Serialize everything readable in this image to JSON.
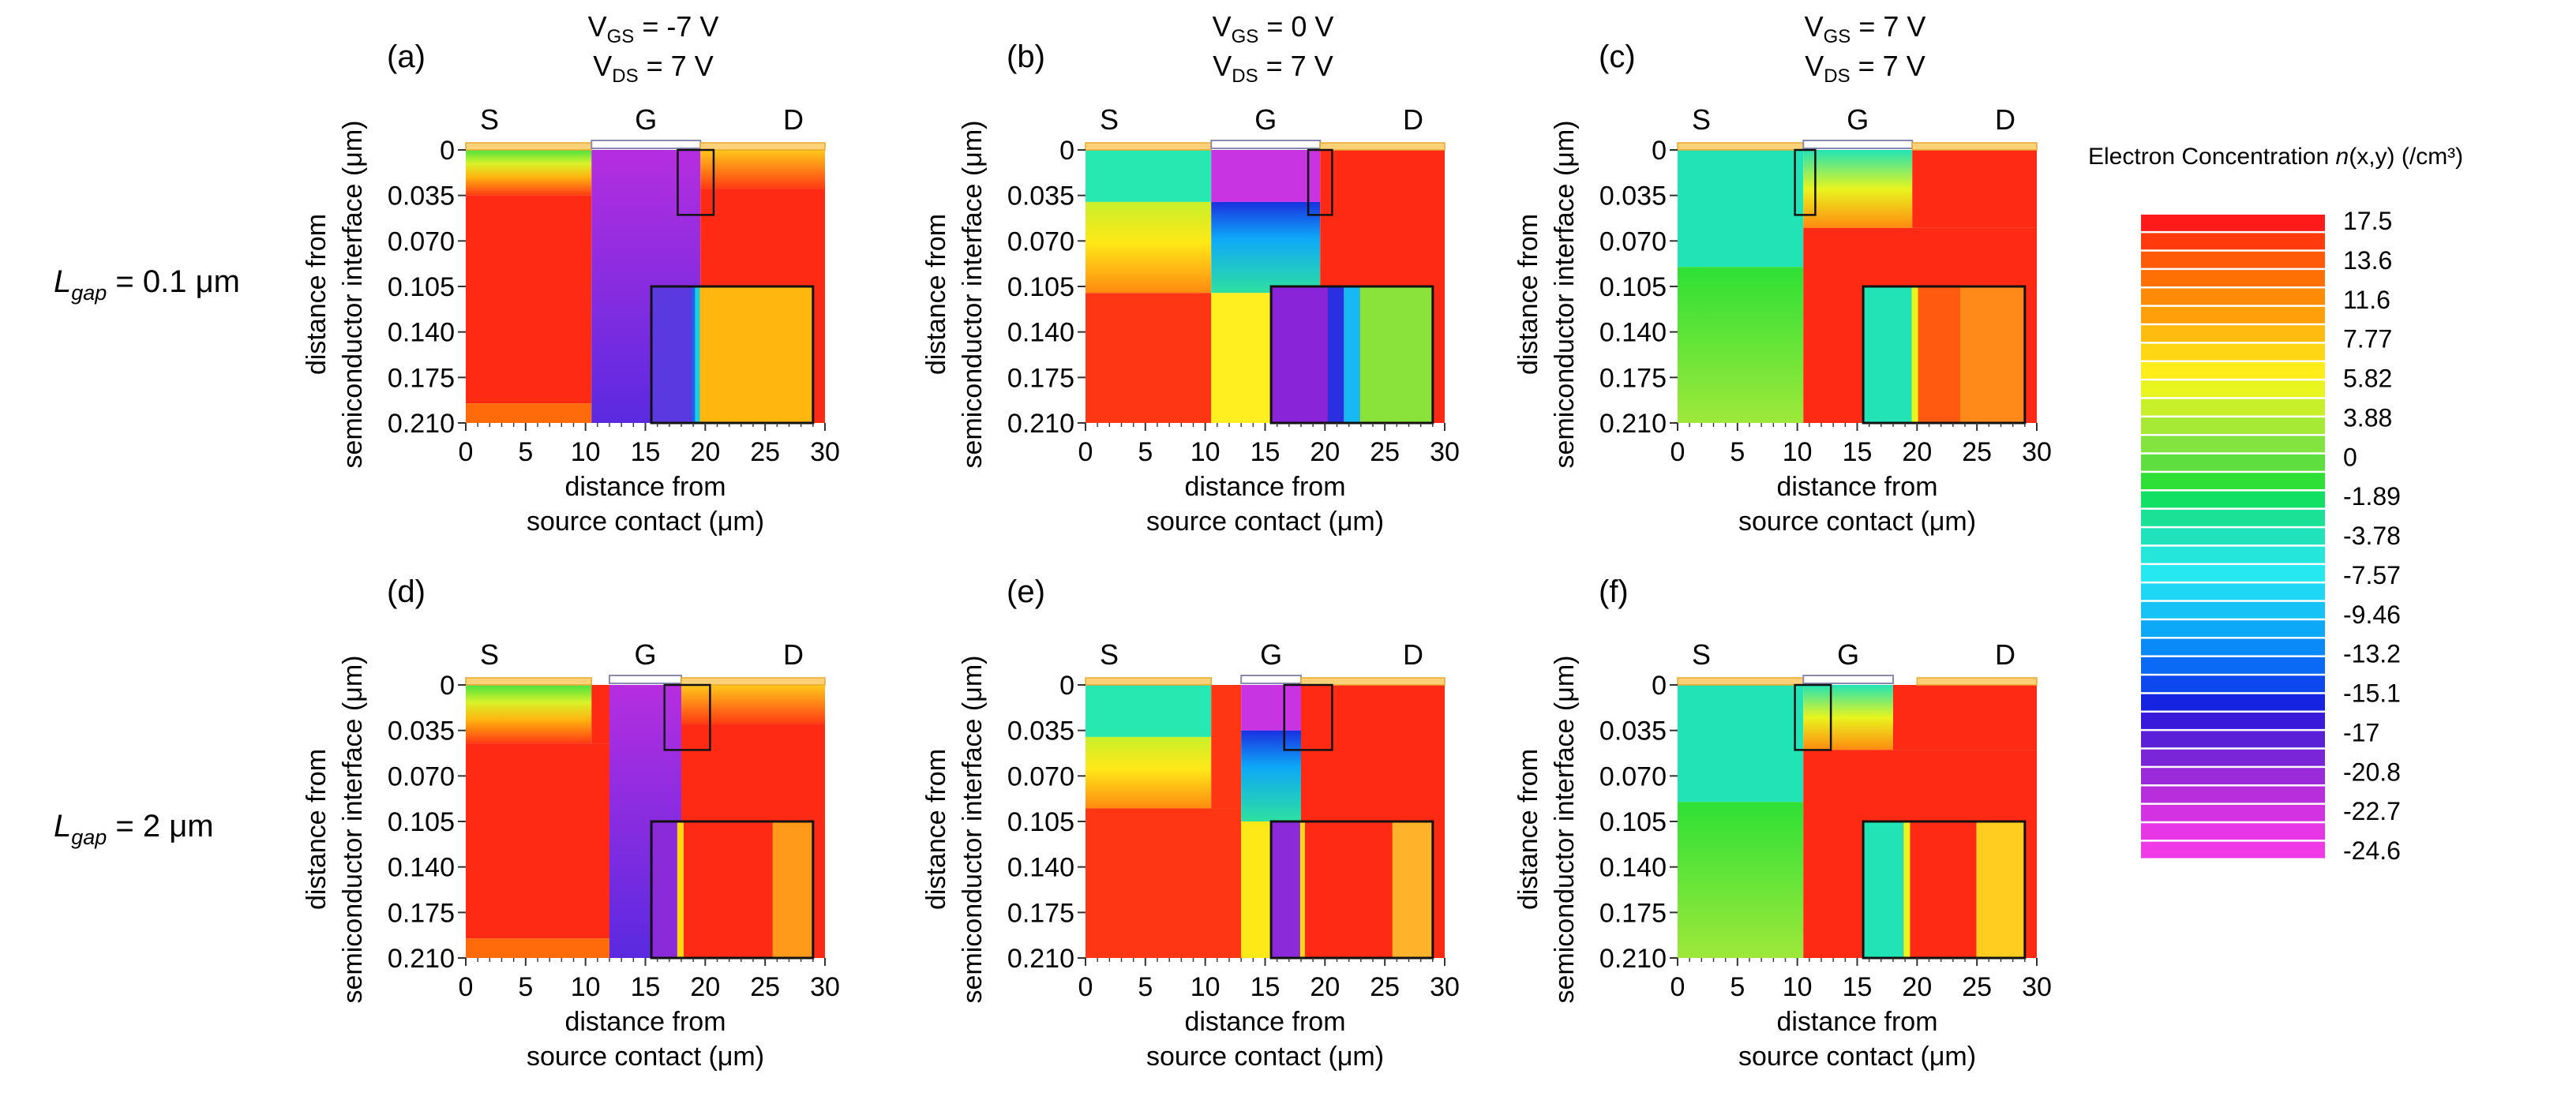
{
  "figure": {
    "rows": [
      {
        "label_prefix": "L",
        "label_sub": "gap",
        "label_suffix": " = 0.1 μm"
      },
      {
        "label_prefix": "L",
        "label_sub": "gap",
        "label_suffix": " = 2 μm"
      }
    ],
    "columns": [
      {
        "vgs_label": "V",
        "vgs_sub": "GS",
        "vgs_value": " = -7 V",
        "vds_label": "V",
        "vds_sub": "DS",
        "vds_value": " = 7 V"
      },
      {
        "vgs_label": "V",
        "vgs_sub": "GS",
        "vgs_value": " = 0 V",
        "vds_label": "V",
        "vds_sub": "DS",
        "vds_value": " = 7 V"
      },
      {
        "vgs_label": "V",
        "vgs_sub": "GS",
        "vgs_value": " = 7 V",
        "vds_label": "V",
        "vds_sub": "DS",
        "vds_value": " = 7 V"
      }
    ],
    "xlabel_line1": "distance from",
    "xlabel_line2": "source contact (μm)",
    "ylabel_line1": "distance from",
    "ylabel_line2": "semiconductor interface (μm)",
    "contact_labels": {
      "source": "S",
      "gate": "G",
      "drain": "D"
    },
    "colorbar": {
      "title_prefix": "Electron Concentration ",
      "title_var": "n",
      "title_args": "(x,y)",
      "title_unit": " (/cm³)",
      "tick_labels": [
        "17.5",
        "13.6",
        "11.6",
        "7.77",
        "5.82",
        "3.88",
        "0",
        "-1.89",
        "-3.78",
        "-7.57",
        "-9.46",
        "-13.2",
        "-15.1",
        "-17",
        "-20.8",
        "-22.7",
        "-24.6"
      ],
      "colors": [
        "#ff1a1a",
        "#ff3b0d",
        "#ff5a08",
        "#ff7004",
        "#ff8a05",
        "#ffa00a",
        "#ffbb10",
        "#ffd614",
        "#ffec19",
        "#e8f51e",
        "#c8f02a",
        "#a6ea35",
        "#84e43f",
        "#5fdf3f",
        "#2ee036",
        "#12e064",
        "#1ae196",
        "#20e3bb",
        "#25e6da",
        "#26e8f0",
        "#1fd7f5",
        "#17c2f7",
        "#0ea8f8",
        "#0a8af8",
        "#0a6af5",
        "#0d48ee",
        "#1624e2",
        "#3a1ada",
        "#5a20d8",
        "#7a26d8",
        "#9a2ada",
        "#b82edd",
        "#d232e2",
        "#e636e6",
        "#f03ae8"
      ]
    },
    "axis_defaults": {
      "xlim": [
        0,
        30
      ],
      "ylim": [
        0,
        0.21
      ],
      "xticks": [
        0,
        5,
        10,
        15,
        20,
        25,
        30
      ],
      "yticks": [
        0,
        0.035,
        0.07,
        0.105,
        0.14,
        0.175,
        0.21
      ],
      "ytick_labels": [
        "0",
        "0.035",
        "0.070",
        "0.105",
        "0.140",
        "0.175",
        "0.210"
      ],
      "xtick_labels": [
        "0",
        "5",
        "10",
        "15",
        "20",
        "25",
        "30"
      ]
    }
  },
  "chart_data": [
    {
      "type": "heatmap",
      "panel": "(a)",
      "row": 0,
      "col": 0,
      "gate_range": [
        10.5,
        19.6
      ],
      "source_end": 10.5,
      "drain_start": 19.6,
      "regions": [
        {
          "x": [
            0,
            10.5
          ],
          "y": [
            0,
            0.035
          ],
          "color": "grad_yg_red"
        },
        {
          "x": [
            0,
            10.5
          ],
          "y": [
            0.035,
            0.195
          ],
          "color": "#ff2a14"
        },
        {
          "x": [
            0,
            10.5
          ],
          "y": [
            0.195,
            0.21
          ],
          "color": "#ff6a0a"
        },
        {
          "x": [
            10.5,
            19.6
          ],
          "y": [
            0,
            0.21
          ],
          "color": "grad_purple_blue"
        },
        {
          "x": [
            19.6,
            30
          ],
          "y": [
            0,
            0.03
          ],
          "color": "grad_orange_red"
        },
        {
          "x": [
            19.6,
            30
          ],
          "y": [
            0.03,
            0.21
          ],
          "color": "#ff2a14"
        }
      ],
      "zoom_box": {
        "x": [
          17.7,
          20.7
        ],
        "y": [
          0,
          0.05
        ]
      },
      "inset": {
        "x": [
          15.5,
          29
        ],
        "y": [
          0.105,
          0.21
        ],
        "bands": [
          {
            "from": 0,
            "to": 0.25,
            "color": "#5a3ae0"
          },
          {
            "from": 0.25,
            "to": 0.27,
            "color": "#2060f0"
          },
          {
            "from": 0.27,
            "to": 0.3,
            "color": "#1ad0e0"
          },
          {
            "from": 0.3,
            "to": 1,
            "color": "#ffb70f"
          }
        ]
      }
    },
    {
      "type": "heatmap",
      "panel": "(b)",
      "row": 0,
      "col": 1,
      "gate_range": [
        10.5,
        19.6
      ],
      "source_end": 10.5,
      "drain_start": 19.6,
      "regions": [
        {
          "x": [
            0,
            10.5
          ],
          "y": [
            0,
            0.04
          ],
          "color": "#27e8b0"
        },
        {
          "x": [
            0,
            10.5
          ],
          "y": [
            0.04,
            0.11
          ],
          "color": "grad_yg_orange"
        },
        {
          "x": [
            0,
            10.5
          ],
          "y": [
            0.11,
            0.21
          ],
          "color": "#ff3614"
        },
        {
          "x": [
            10.5,
            19.6
          ],
          "y": [
            0,
            0.04
          ],
          "color": "#c834e2"
        },
        {
          "x": [
            10.5,
            19.6
          ],
          "y": [
            0.04,
            0.11
          ],
          "color": "grad_blue_cyan"
        },
        {
          "x": [
            10.5,
            19.6
          ],
          "y": [
            0.11,
            0.21
          ],
          "color": "#ffee20"
        },
        {
          "x": [
            19.6,
            30
          ],
          "y": [
            0,
            0.21
          ],
          "color": "#ff2a14"
        }
      ],
      "zoom_box": {
        "x": [
          18.6,
          20.6
        ],
        "y": [
          0,
          0.05
        ]
      },
      "inset": {
        "x": [
          15.5,
          29
        ],
        "y": [
          0.105,
          0.21
        ],
        "bands": [
          {
            "from": 0,
            "to": 0.35,
            "color": "#8a24d8"
          },
          {
            "from": 0.35,
            "to": 0.45,
            "color": "#2a30e0"
          },
          {
            "from": 0.45,
            "to": 0.55,
            "color": "#16b8f5"
          },
          {
            "from": 0.55,
            "to": 1,
            "color": "#8ae33a"
          }
        ]
      }
    },
    {
      "type": "heatmap",
      "panel": "(c)",
      "row": 0,
      "col": 2,
      "gate_range": [
        10.5,
        19.6
      ],
      "source_end": 10.5,
      "drain_start": 19.6,
      "regions": [
        {
          "x": [
            0,
            10.5
          ],
          "y": [
            0,
            0.09
          ],
          "color": "#22e3b5"
        },
        {
          "x": [
            0,
            10.5
          ],
          "y": [
            0.09,
            0.21
          ],
          "color": "grad_green_ygreen"
        },
        {
          "x": [
            10.5,
            19.6
          ],
          "y": [
            0,
            0.06
          ],
          "color": "grad_cyan_orange"
        },
        {
          "x": [
            10.5,
            30
          ],
          "y": [
            0.06,
            0.21
          ],
          "color": "#ff2a14"
        },
        {
          "x": [
            19.6,
            30
          ],
          "y": [
            0,
            0.06
          ],
          "color": "#ff2a14"
        }
      ],
      "zoom_box": {
        "x": [
          9.8,
          11.5
        ],
        "y": [
          0,
          0.05
        ]
      },
      "inset": {
        "x": [
          15.5,
          29
        ],
        "y": [
          0.105,
          0.21
        ],
        "bands": [
          {
            "from": 0,
            "to": 0.3,
            "color": "#22e3b5"
          },
          {
            "from": 0.3,
            "to": 0.34,
            "color": "#e8f51e"
          },
          {
            "from": 0.34,
            "to": 0.6,
            "color": "#ff5a10"
          },
          {
            "from": 0.6,
            "to": 1,
            "color": "#ff8a1a"
          }
        ]
      }
    },
    {
      "type": "heatmap",
      "panel": "(d)",
      "row": 1,
      "col": 0,
      "gate_range": [
        12,
        18
      ],
      "source_end": 10.5,
      "drain_start": 18,
      "regions": [
        {
          "x": [
            0,
            10.5
          ],
          "y": [
            0,
            0.045
          ],
          "color": "grad_yg_red"
        },
        {
          "x": [
            0,
            12
          ],
          "y": [
            0.045,
            0.195
          ],
          "color": "#ff2a14"
        },
        {
          "x": [
            10.5,
            12
          ],
          "y": [
            0,
            0.045
          ],
          "color": "#ff2a14"
        },
        {
          "x": [
            0,
            12
          ],
          "y": [
            0.195,
            0.21
          ],
          "color": "#ff6a0a"
        },
        {
          "x": [
            12,
            18
          ],
          "y": [
            0,
            0.21
          ],
          "color": "grad_purple_blue"
        },
        {
          "x": [
            18,
            30
          ],
          "y": [
            0,
            0.03
          ],
          "color": "grad_orange_red"
        },
        {
          "x": [
            18,
            30
          ],
          "y": [
            0.03,
            0.21
          ],
          "color": "#ff2a14"
        }
      ],
      "zoom_box": {
        "x": [
          16.6,
          20.4
        ],
        "y": [
          0,
          0.05
        ]
      },
      "inset": {
        "x": [
          15.5,
          29
        ],
        "y": [
          0.105,
          0.21
        ],
        "bands": [
          {
            "from": 0,
            "to": 0.16,
            "color": "#8a2ad8"
          },
          {
            "from": 0.16,
            "to": 0.2,
            "color": "#ffd614"
          },
          {
            "from": 0.2,
            "to": 0.75,
            "color": "#ff2a14"
          },
          {
            "from": 0.75,
            "to": 1,
            "color": "#ff9a1a"
          }
        ]
      }
    },
    {
      "type": "heatmap",
      "panel": "(e)",
      "row": 1,
      "col": 1,
      "gate_range": [
        13,
        18
      ],
      "source_end": 10.5,
      "drain_start": 18,
      "regions": [
        {
          "x": [
            0,
            10.5
          ],
          "y": [
            0,
            0.04
          ],
          "color": "#27e8b0"
        },
        {
          "x": [
            0,
            10.5
          ],
          "y": [
            0.04,
            0.095
          ],
          "color": "grad_yg_orange"
        },
        {
          "x": [
            0,
            13
          ],
          "y": [
            0.095,
            0.21
          ],
          "color": "#ff3614"
        },
        {
          "x": [
            10.5,
            13
          ],
          "y": [
            0,
            0.095
          ],
          "color": "#ff3614"
        },
        {
          "x": [
            13,
            18
          ],
          "y": [
            0,
            0.035
          ],
          "color": "#c834e2"
        },
        {
          "x": [
            13,
            18
          ],
          "y": [
            0.035,
            0.105
          ],
          "color": "grad_blue_cyan"
        },
        {
          "x": [
            13,
            18
          ],
          "y": [
            0.105,
            0.21
          ],
          "color": "#ffe818"
        },
        {
          "x": [
            18,
            30
          ],
          "y": [
            0,
            0.21
          ],
          "color": "#ff2a14"
        }
      ],
      "zoom_box": {
        "x": [
          16.6,
          20.6
        ],
        "y": [
          0,
          0.05
        ]
      },
      "inset": {
        "x": [
          15.5,
          29
        ],
        "y": [
          0.105,
          0.21
        ],
        "bands": [
          {
            "from": 0,
            "to": 0.18,
            "color": "#8a2ad8"
          },
          {
            "from": 0.18,
            "to": 0.21,
            "color": "#ffd614"
          },
          {
            "from": 0.21,
            "to": 0.75,
            "color": "#ff2a14"
          },
          {
            "from": 0.75,
            "to": 1,
            "color": "#ffb22a"
          }
        ]
      }
    },
    {
      "type": "heatmap",
      "panel": "(f)",
      "row": 1,
      "col": 2,
      "gate_range": [
        10.5,
        18
      ],
      "source_end": 10.5,
      "drain_start": 20,
      "regions": [
        {
          "x": [
            0,
            10.5
          ],
          "y": [
            0,
            0.09
          ],
          "color": "#22e3b5"
        },
        {
          "x": [
            0,
            10.5
          ],
          "y": [
            0.09,
            0.21
          ],
          "color": "grad_green_ygreen"
        },
        {
          "x": [
            10.5,
            18
          ],
          "y": [
            0,
            0.05
          ],
          "color": "grad_cyan_orange"
        },
        {
          "x": [
            10.5,
            30
          ],
          "y": [
            0.05,
            0.21
          ],
          "color": "#ff2a14"
        },
        {
          "x": [
            18,
            30
          ],
          "y": [
            0,
            0.05
          ],
          "color": "#ff2a14"
        }
      ],
      "zoom_box": {
        "x": [
          9.8,
          12.8
        ],
        "y": [
          0,
          0.05
        ]
      },
      "inset": {
        "x": [
          15.5,
          29
        ],
        "y": [
          0.105,
          0.21
        ],
        "bands": [
          {
            "from": 0,
            "to": 0.25,
            "color": "#22e3b5"
          },
          {
            "from": 0.25,
            "to": 0.29,
            "color": "#e8f51e"
          },
          {
            "from": 0.29,
            "to": 0.7,
            "color": "#ff2a14"
          },
          {
            "from": 0.7,
            "to": 1,
            "color": "#ffcc20"
          }
        ]
      }
    }
  ]
}
